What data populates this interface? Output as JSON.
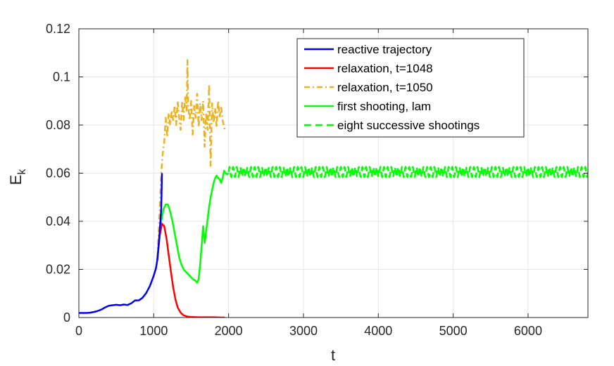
{
  "chart_data": {
    "type": "line",
    "xlabel": "t",
    "ylabel": "E",
    "ylabel_subscript": "k",
    "xlim": [
      0,
      6800
    ],
    "ylim": [
      0,
      0.12
    ],
    "grid": true,
    "legend_position": "top-right",
    "x_ticks": [
      0,
      1000,
      2000,
      3000,
      4000,
      5000,
      6000
    ],
    "x_tick_labels": [
      "0",
      "1000",
      "2000",
      "3000",
      "4000",
      "5000",
      "6000"
    ],
    "y_ticks": [
      0,
      0.02,
      0.04,
      0.06,
      0.08,
      0.1,
      0.12
    ],
    "y_tick_labels": [
      "0",
      "0.02",
      "0.04",
      "0.06",
      "0.08",
      "0.1",
      "0.12"
    ],
    "series": [
      {
        "name": "reactive trajectory",
        "color": "#0000ff",
        "style": "solid",
        "x": [
          0,
          50,
          100,
          150,
          200,
          250,
          300,
          350,
          400,
          450,
          500,
          550,
          600,
          650,
          700,
          750,
          800,
          850,
          900,
          950,
          1000,
          1030,
          1048,
          1060,
          1080,
          1100,
          1110
        ],
        "y": [
          0.0019,
          0.0019,
          0.0019,
          0.002,
          0.0023,
          0.0027,
          0.0033,
          0.0042,
          0.0049,
          0.0051,
          0.0053,
          0.0051,
          0.0054,
          0.0052,
          0.0059,
          0.0071,
          0.0071,
          0.0082,
          0.0102,
          0.0132,
          0.0174,
          0.0205,
          0.024,
          0.028,
          0.036,
          0.045,
          0.06
        ]
      },
      {
        "name": "relaxation, t=1048",
        "color": "#ff0000",
        "style": "solid",
        "x": [
          1048,
          1080,
          1110,
          1140,
          1170,
          1200,
          1230,
          1260,
          1290,
          1320,
          1360,
          1400,
          1450,
          1500,
          1600,
          1700,
          1800,
          1900,
          1950
        ],
        "y": [
          0.024,
          0.034,
          0.039,
          0.038,
          0.033,
          0.026,
          0.019,
          0.0125,
          0.0075,
          0.0042,
          0.002,
          0.0009,
          0.0004,
          0.0002,
          0.0001,
          0.0001,
          0.0001,
          0.0,
          0.0
        ]
      },
      {
        "name": "relaxation, t=1050",
        "color": "#edb120",
        "style": "dashdot",
        "x": [
          1050,
          1080,
          1100,
          1120,
          1140,
          1160,
          1180,
          1200,
          1220,
          1240,
          1260,
          1280,
          1300,
          1320,
          1340,
          1360,
          1380,
          1400,
          1420,
          1440,
          1450,
          1460,
          1480,
          1500,
          1520,
          1540,
          1560,
          1580,
          1600,
          1620,
          1640,
          1660,
          1680,
          1700,
          1720,
          1740,
          1760,
          1780,
          1800,
          1820,
          1840,
          1860,
          1880,
          1900,
          1920,
          1950
        ],
        "y": [
          0.025,
          0.045,
          0.06,
          0.068,
          0.073,
          0.083,
          0.075,
          0.085,
          0.08,
          0.086,
          0.082,
          0.088,
          0.08,
          0.09,
          0.083,
          0.078,
          0.09,
          0.082,
          0.092,
          0.086,
          0.107,
          0.088,
          0.082,
          0.09,
          0.076,
          0.088,
          0.083,
          0.093,
          0.079,
          0.089,
          0.082,
          0.09,
          0.071,
          0.085,
          0.078,
          0.097,
          0.063,
          0.089,
          0.081,
          0.087,
          0.079,
          0.09,
          0.083,
          0.088,
          0.082,
          0.078
        ]
      },
      {
        "name": "first shooting, lam",
        "color": "#00ff00",
        "style": "solid",
        "x": [
          1050,
          1080,
          1100,
          1130,
          1160,
          1190,
          1220,
          1250,
          1280,
          1310,
          1340,
          1370,
          1400,
          1430,
          1460,
          1490,
          1520,
          1550,
          1580,
          1600,
          1620,
          1640,
          1660,
          1680,
          1700,
          1720,
          1740,
          1760,
          1780,
          1800,
          1820,
          1840,
          1860,
          1880,
          1900,
          1920,
          1940,
          1960,
          1980,
          2000
        ],
        "y": [
          0.024,
          0.035,
          0.04,
          0.045,
          0.047,
          0.047,
          0.044,
          0.04,
          0.035,
          0.03,
          0.025,
          0.022,
          0.02,
          0.019,
          0.018,
          0.017,
          0.016,
          0.0155,
          0.0145,
          0.016,
          0.022,
          0.03,
          0.038,
          0.031,
          0.036,
          0.041,
          0.046,
          0.05,
          0.053,
          0.056,
          0.058,
          0.059,
          0.058,
          0.0575,
          0.056,
          0.058,
          0.061,
          0.06,
          0.0595,
          0.06
        ]
      },
      {
        "name": "eight successive shootings",
        "color": "#00ff00",
        "style": "dashed",
        "x_range": [
          2000,
          6800
        ],
        "oscillation": {
          "mean": 0.0605,
          "amplitude": 0.0021,
          "period": 48
        }
      }
    ]
  }
}
